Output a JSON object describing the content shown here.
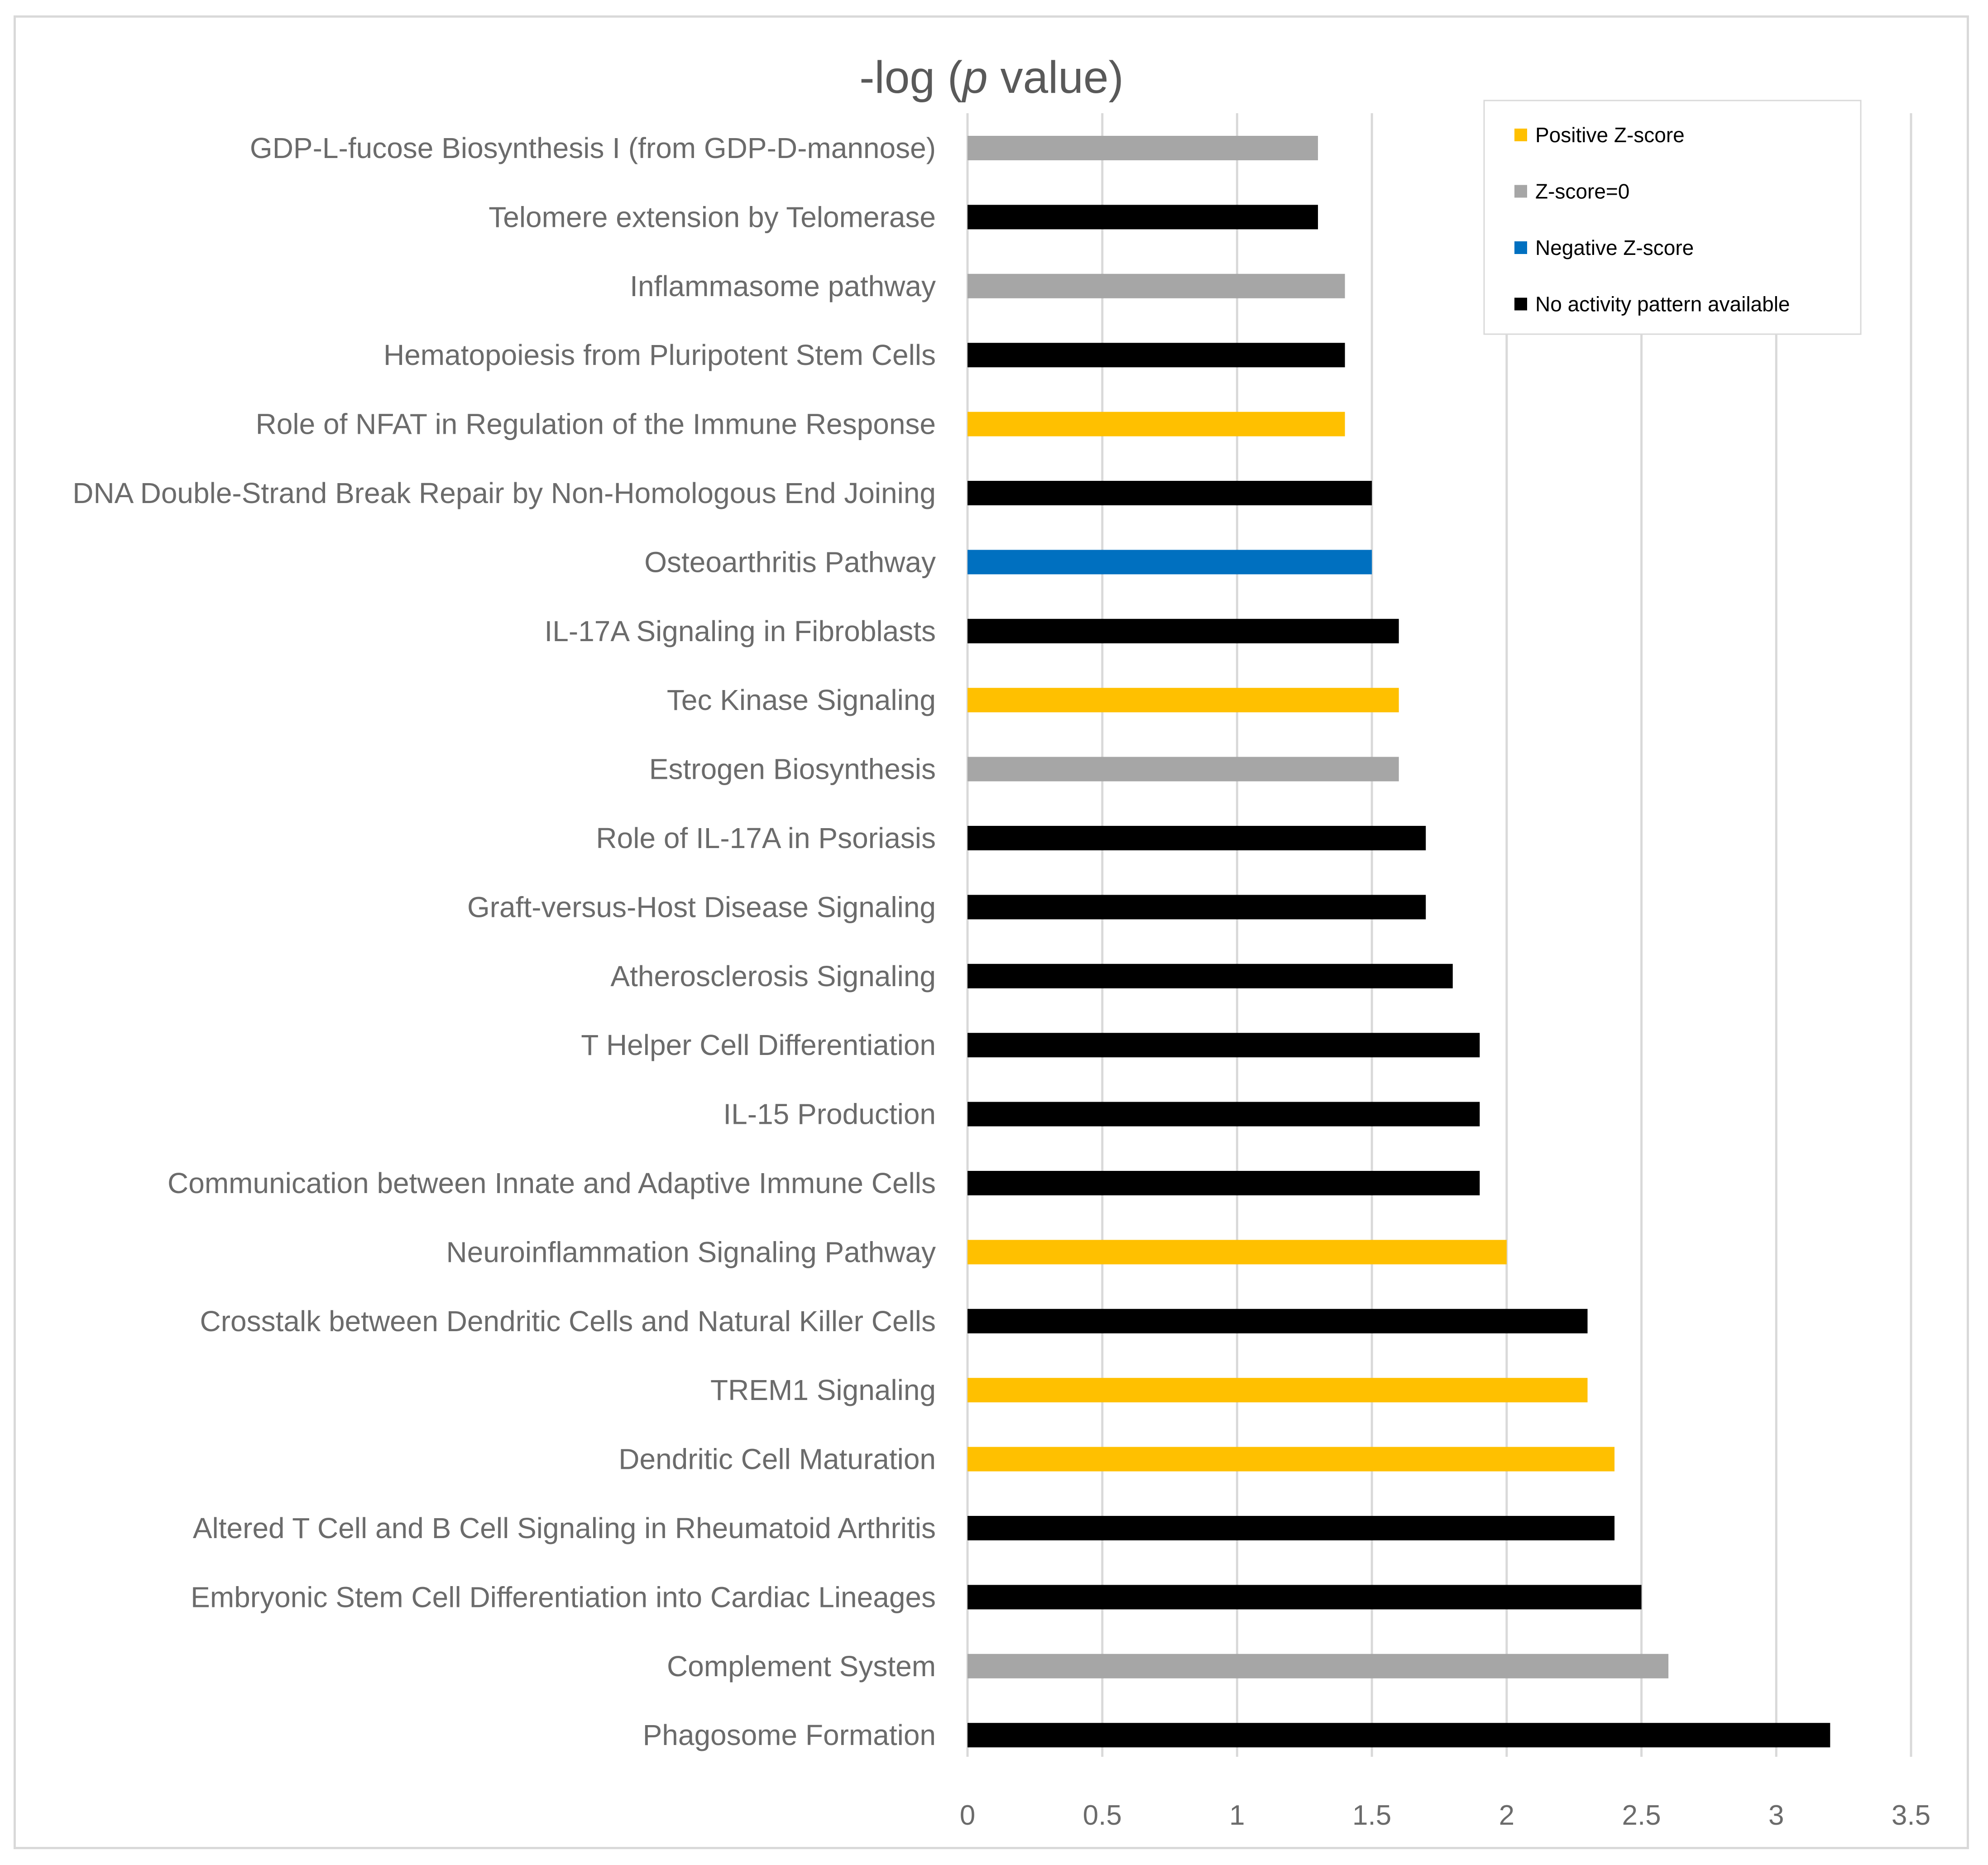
{
  "chart_data": {
    "type": "bar",
    "orientation": "horizontal",
    "title": {
      "prefix": "-log (",
      "italic": "p",
      "suffix": " value)"
    },
    "categories": [
      "GDP-L-fucose Biosynthesis I (from GDP-D-mannose)",
      "Telomere extension by Telomerase",
      "Inflammasome pathway",
      "Hematopoiesis from Pluripotent Stem Cells",
      "Role of NFAT in Regulation of the Immune Response",
      "DNA Double-Strand Break Repair by Non-Homologous End Joining",
      "Osteoarthritis Pathway",
      "IL-17A Signaling in Fibroblasts",
      "Tec Kinase Signaling",
      "Estrogen Biosynthesis",
      "Role of IL-17A in Psoriasis",
      "Graft-versus-Host Disease Signaling",
      "Atherosclerosis Signaling",
      "T Helper Cell Differentiation",
      "IL-15 Production",
      "Communication between Innate and Adaptive Immune Cells",
      "Neuroinflammation Signaling Pathway",
      "Crosstalk between Dendritic Cells and Natural Killer Cells",
      "TREM1 Signaling",
      "Dendritic Cell Maturation",
      "Altered T Cell and B Cell Signaling in Rheumatoid Arthritis",
      "Embryonic Stem Cell Differentiation into Cardiac Lineages",
      "Complement System",
      "Phagosome Formation"
    ],
    "values": [
      1.3,
      1.3,
      1.4,
      1.4,
      1.4,
      1.5,
      1.5,
      1.6,
      1.6,
      1.6,
      1.7,
      1.7,
      1.8,
      1.9,
      1.9,
      1.9,
      2.0,
      2.3,
      2.3,
      2.4,
      2.4,
      2.5,
      2.6,
      3.2
    ],
    "bar_groups": [
      "zero",
      "none",
      "zero",
      "none",
      "positive",
      "none",
      "negative",
      "none",
      "positive",
      "zero",
      "none",
      "none",
      "none",
      "none",
      "none",
      "none",
      "positive",
      "none",
      "positive",
      "positive",
      "none",
      "none",
      "zero",
      "none"
    ],
    "xlim": [
      0,
      3.5
    ],
    "xticks": [
      "0",
      "0.5",
      "1",
      "1.5",
      "2",
      "2.5",
      "3",
      "3.5"
    ],
    "grid": true,
    "legend": {
      "placement": "top-right",
      "entries": [
        {
          "key": "positive",
          "label": "Positive Z-score",
          "color": "#ffc000"
        },
        {
          "key": "zero",
          "label": "Z-score=0",
          "color": "#a6a6a6"
        },
        {
          "key": "negative",
          "label": "Negative Z-score",
          "color": "#0070c0"
        },
        {
          "key": "none",
          "label": "No activity pattern available",
          "color": "#000000"
        }
      ]
    }
  }
}
